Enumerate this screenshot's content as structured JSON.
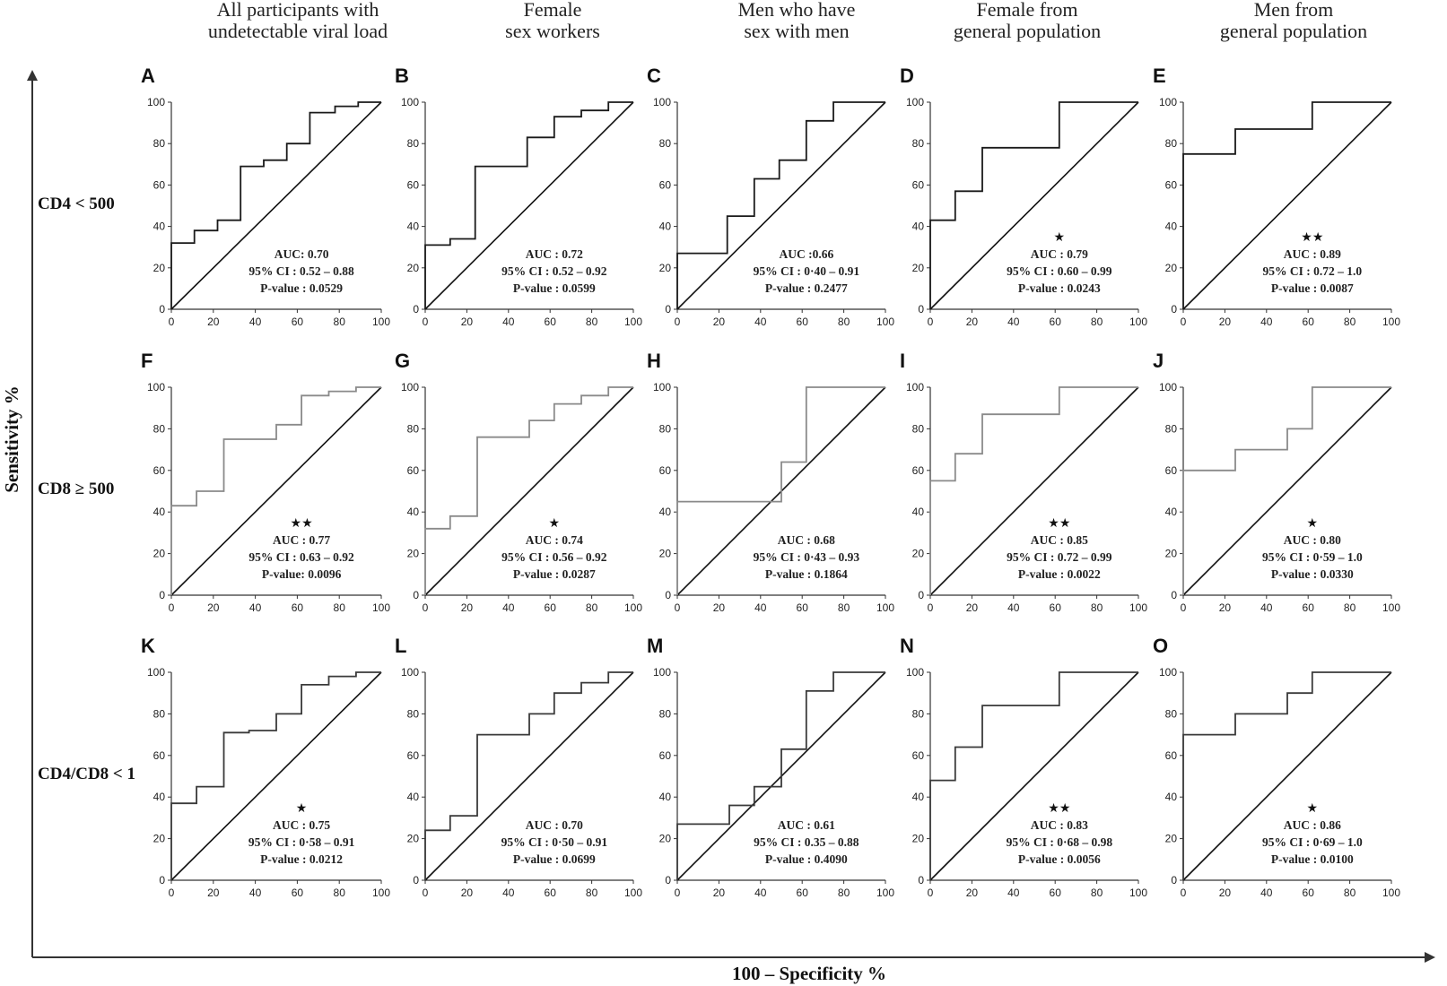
{
  "chart_data": {
    "type": "line",
    "xlabel": "100 – Specificity %",
    "ylabel": "Sensitivity %",
    "xlim": [
      0,
      100
    ],
    "ylim": [
      0,
      100
    ],
    "ticks": [
      "0",
      "20",
      "40",
      "60",
      "80",
      "100"
    ],
    "columns": [
      [
        "All participants with",
        "undetectable viral load"
      ],
      [
        "Female",
        "sex workers"
      ],
      [
        "Men who have",
        "sex with men"
      ],
      [
        "Female from",
        "general population"
      ],
      [
        "Men from",
        "general population"
      ]
    ],
    "rows": [
      "CD4 < 500",
      "CD8 ≥ 500",
      "CD4/CD8 < 1"
    ],
    "colors": {
      "row0": "#1a1a1a",
      "row1": "#8a8a8a",
      "row2": "#3a3a3a",
      "reference": "#111111"
    },
    "panels": [
      {
        "letter": "A",
        "stars": "",
        "auc": "AUC: 0.70",
        "ci": "95% CI : 0.52 – 0.88",
        "p": "P-value : 0.0529",
        "roc": [
          [
            0,
            0
          ],
          [
            0,
            32
          ],
          [
            11,
            32
          ],
          [
            11,
            38
          ],
          [
            22,
            38
          ],
          [
            22,
            43
          ],
          [
            33,
            43
          ],
          [
            33,
            69
          ],
          [
            44,
            69
          ],
          [
            44,
            72
          ],
          [
            55,
            72
          ],
          [
            55,
            80
          ],
          [
            66,
            80
          ],
          [
            66,
            95
          ],
          [
            78,
            95
          ],
          [
            78,
            98
          ],
          [
            89,
            98
          ],
          [
            89,
            100
          ],
          [
            100,
            100
          ]
        ]
      },
      {
        "letter": "B",
        "stars": "",
        "auc": "AUC : 0.72",
        "ci": "95% CI : 0.52 – 0.92",
        "p": "P-value : 0.0599",
        "roc": [
          [
            0,
            0
          ],
          [
            0,
            31
          ],
          [
            12,
            31
          ],
          [
            12,
            34
          ],
          [
            24,
            34
          ],
          [
            24,
            69
          ],
          [
            49,
            69
          ],
          [
            49,
            83
          ],
          [
            62,
            83
          ],
          [
            62,
            93
          ],
          [
            75,
            93
          ],
          [
            75,
            96
          ],
          [
            88,
            96
          ],
          [
            88,
            100
          ],
          [
            100,
            100
          ]
        ]
      },
      {
        "letter": "C",
        "stars": "",
        "auc": "AUC :0.66",
        "ci": "95% CI : 0·40 – 0.91",
        "p": "P-value : 0.2477",
        "roc": [
          [
            0,
            0
          ],
          [
            0,
            27
          ],
          [
            24,
            27
          ],
          [
            24,
            45
          ],
          [
            37,
            45
          ],
          [
            37,
            63
          ],
          [
            49,
            63
          ],
          [
            49,
            72
          ],
          [
            62,
            72
          ],
          [
            62,
            91
          ],
          [
            75,
            91
          ],
          [
            75,
            100
          ],
          [
            100,
            100
          ]
        ]
      },
      {
        "letter": "D",
        "stars": "★",
        "auc": "AUC : 0.79",
        "ci": "95% CI : 0.60 – 0.99",
        "p": "P-value : 0.0243",
        "roc": [
          [
            0,
            0
          ],
          [
            0,
            43
          ],
          [
            12,
            43
          ],
          [
            12,
            57
          ],
          [
            25,
            57
          ],
          [
            25,
            78
          ],
          [
            62,
            78
          ],
          [
            62,
            100
          ],
          [
            100,
            100
          ]
        ]
      },
      {
        "letter": "E",
        "stars": "★★",
        "auc": "AUC : 0.89",
        "ci": "95% CI : 0.72 – 1.0",
        "p": "P-value : 0.0087",
        "roc": [
          [
            0,
            0
          ],
          [
            0,
            75
          ],
          [
            25,
            75
          ],
          [
            25,
            87
          ],
          [
            62,
            87
          ],
          [
            62,
            100
          ],
          [
            100,
            100
          ]
        ]
      },
      {
        "letter": "F",
        "stars": "★★",
        "auc": "AUC : 0.77",
        "ci": "95% CI : 0.63 – 0.92",
        "p": "P-value: 0.0096",
        "roc": [
          [
            0,
            0
          ],
          [
            0,
            43
          ],
          [
            12,
            43
          ],
          [
            12,
            50
          ],
          [
            25,
            50
          ],
          [
            25,
            75
          ],
          [
            50,
            75
          ],
          [
            50,
            82
          ],
          [
            62,
            82
          ],
          [
            62,
            96
          ],
          [
            75,
            96
          ],
          [
            75,
            98
          ],
          [
            88,
            98
          ],
          [
            88,
            100
          ],
          [
            100,
            100
          ]
        ]
      },
      {
        "letter": "G",
        "stars": "★",
        "auc": "AUC : 0.74",
        "ci": "95% CI : 0.56 – 0.92",
        "p": "P-value : 0.0287",
        "roc": [
          [
            0,
            0
          ],
          [
            0,
            32
          ],
          [
            12,
            32
          ],
          [
            12,
            38
          ],
          [
            25,
            38
          ],
          [
            25,
            76
          ],
          [
            50,
            76
          ],
          [
            50,
            84
          ],
          [
            62,
            84
          ],
          [
            62,
            92
          ],
          [
            75,
            92
          ],
          [
            75,
            96
          ],
          [
            88,
            96
          ],
          [
            88,
            100
          ],
          [
            100,
            100
          ]
        ]
      },
      {
        "letter": "H",
        "stars": "",
        "auc": "AUC : 0.68",
        "ci": "95% CI : 0·43 – 0.93",
        "p": "P-value : 0.1864",
        "roc": [
          [
            0,
            0
          ],
          [
            0,
            45
          ],
          [
            50,
            45
          ],
          [
            50,
            64
          ],
          [
            62,
            64
          ],
          [
            62,
            100
          ],
          [
            100,
            100
          ]
        ]
      },
      {
        "letter": "I",
        "stars": "★★",
        "auc": "AUC : 0.85",
        "ci": "95% CI : 0.72 – 0.99",
        "p": "P-value : 0.0022",
        "roc": [
          [
            0,
            0
          ],
          [
            0,
            55
          ],
          [
            12,
            55
          ],
          [
            12,
            68
          ],
          [
            25,
            68
          ],
          [
            25,
            87
          ],
          [
            62,
            87
          ],
          [
            62,
            100
          ],
          [
            100,
            100
          ]
        ]
      },
      {
        "letter": "J",
        "stars": "★",
        "auc": "AUC : 0.80",
        "ci": "95% CI : 0·59 – 1.0",
        "p": "P-value : 0.0330",
        "roc": [
          [
            0,
            0
          ],
          [
            0,
            60
          ],
          [
            25,
            60
          ],
          [
            25,
            70
          ],
          [
            50,
            70
          ],
          [
            50,
            80
          ],
          [
            62,
            80
          ],
          [
            62,
            100
          ],
          [
            100,
            100
          ]
        ]
      },
      {
        "letter": "K",
        "stars": "★",
        "auc": "AUC : 0.75",
        "ci": "95% CI : 0·58 – 0.91",
        "p": "P-value : 0.0212",
        "roc": [
          [
            0,
            0
          ],
          [
            0,
            37
          ],
          [
            12,
            37
          ],
          [
            12,
            45
          ],
          [
            25,
            45
          ],
          [
            25,
            71
          ],
          [
            37,
            71
          ],
          [
            37,
            72
          ],
          [
            50,
            72
          ],
          [
            50,
            80
          ],
          [
            62,
            80
          ],
          [
            62,
            94
          ],
          [
            75,
            94
          ],
          [
            75,
            98
          ],
          [
            88,
            98
          ],
          [
            88,
            100
          ],
          [
            100,
            100
          ]
        ]
      },
      {
        "letter": "L",
        "stars": "",
        "auc": "AUC : 0.70",
        "ci": "95% CI : 0·50 – 0.91",
        "p": "P-value : 0.0699",
        "roc": [
          [
            0,
            0
          ],
          [
            0,
            24
          ],
          [
            12,
            24
          ],
          [
            12,
            31
          ],
          [
            25,
            31
          ],
          [
            25,
            70
          ],
          [
            50,
            70
          ],
          [
            50,
            80
          ],
          [
            62,
            80
          ],
          [
            62,
            90
          ],
          [
            75,
            90
          ],
          [
            75,
            95
          ],
          [
            88,
            95
          ],
          [
            88,
            100
          ],
          [
            100,
            100
          ]
        ]
      },
      {
        "letter": "M",
        "stars": "",
        "auc": "AUC : 0.61",
        "ci": "95% CI : 0.35 – 0.88",
        "p": "P-value : 0.4090",
        "roc": [
          [
            0,
            0
          ],
          [
            0,
            27
          ],
          [
            25,
            27
          ],
          [
            25,
            36
          ],
          [
            37,
            36
          ],
          [
            37,
            45
          ],
          [
            50,
            45
          ],
          [
            50,
            63
          ],
          [
            62,
            63
          ],
          [
            62,
            91
          ],
          [
            75,
            91
          ],
          [
            75,
            100
          ],
          [
            100,
            100
          ]
        ]
      },
      {
        "letter": "N",
        "stars": "★★",
        "auc": "AUC : 0.83",
        "ci": "95% CI : 0·68 – 0.98",
        "p": "P-value : 0.0056",
        "roc": [
          [
            0,
            0
          ],
          [
            0,
            48
          ],
          [
            12,
            48
          ],
          [
            12,
            64
          ],
          [
            25,
            64
          ],
          [
            25,
            84
          ],
          [
            62,
            84
          ],
          [
            62,
            100
          ],
          [
            100,
            100
          ]
        ]
      },
      {
        "letter": "O",
        "stars": "★",
        "auc": "AUC : 0.86",
        "ci": "95% CI : 0·69 – 1.0",
        "p": "P-value : 0.0100",
        "roc": [
          [
            0,
            0
          ],
          [
            0,
            70
          ],
          [
            25,
            70
          ],
          [
            25,
            80
          ],
          [
            50,
            80
          ],
          [
            50,
            90
          ],
          [
            62,
            90
          ],
          [
            62,
            100
          ],
          [
            100,
            100
          ]
        ]
      }
    ]
  }
}
